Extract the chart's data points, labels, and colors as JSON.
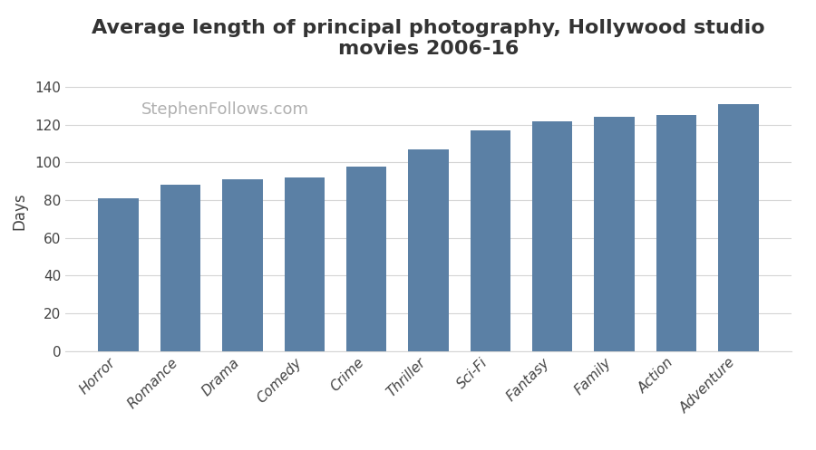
{
  "title": "Average length of principal photography, Hollywood studio\nmovies 2006-16",
  "ylabel": "Days",
  "watermark": "StephenFollows.com",
  "categories": [
    "Horror",
    "Romance",
    "Drama",
    "Comedy",
    "Crime",
    "Thriller",
    "Sci-Fi",
    "Fantasy",
    "Family",
    "Action",
    "Adventure"
  ],
  "values": [
    81,
    88,
    91,
    92,
    98,
    107,
    117,
    122,
    124,
    125,
    131
  ],
  "bar_color": "#5b80a5",
  "background_color": "#ffffff",
  "ylim": [
    0,
    148
  ],
  "yticks": [
    0,
    20,
    40,
    60,
    80,
    100,
    120,
    140
  ],
  "title_fontsize": 16,
  "ylabel_fontsize": 12,
  "tick_fontsize": 11,
  "watermark_fontsize": 13,
  "watermark_color": "#b0b0b0",
  "grid_color": "#d5d5d5",
  "spine_color": "#d5d5d5",
  "text_color": "#444444"
}
